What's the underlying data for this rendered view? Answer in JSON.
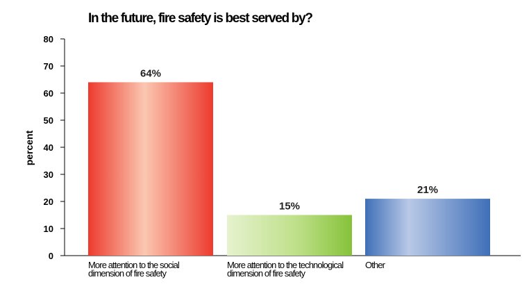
{
  "chart_data": {
    "type": "bar",
    "title": "In the future, fire safety is best served by?",
    "ylabel": "percent",
    "xlabel": "",
    "ylim": [
      0,
      80
    ],
    "yticks": [
      0,
      10,
      20,
      30,
      40,
      50,
      60,
      70,
      80
    ],
    "categories": [
      "More attention to the social dimension of fire safety",
      "More attention to the technological dimension of fire safety",
      "Other"
    ],
    "values": [
      64,
      15,
      21
    ],
    "data_labels": [
      "64%",
      "15%",
      "21%"
    ],
    "colors": [
      "#e8413a",
      "#8dc63f",
      "#4a78bf"
    ],
    "grid": false,
    "legend": "none"
  }
}
